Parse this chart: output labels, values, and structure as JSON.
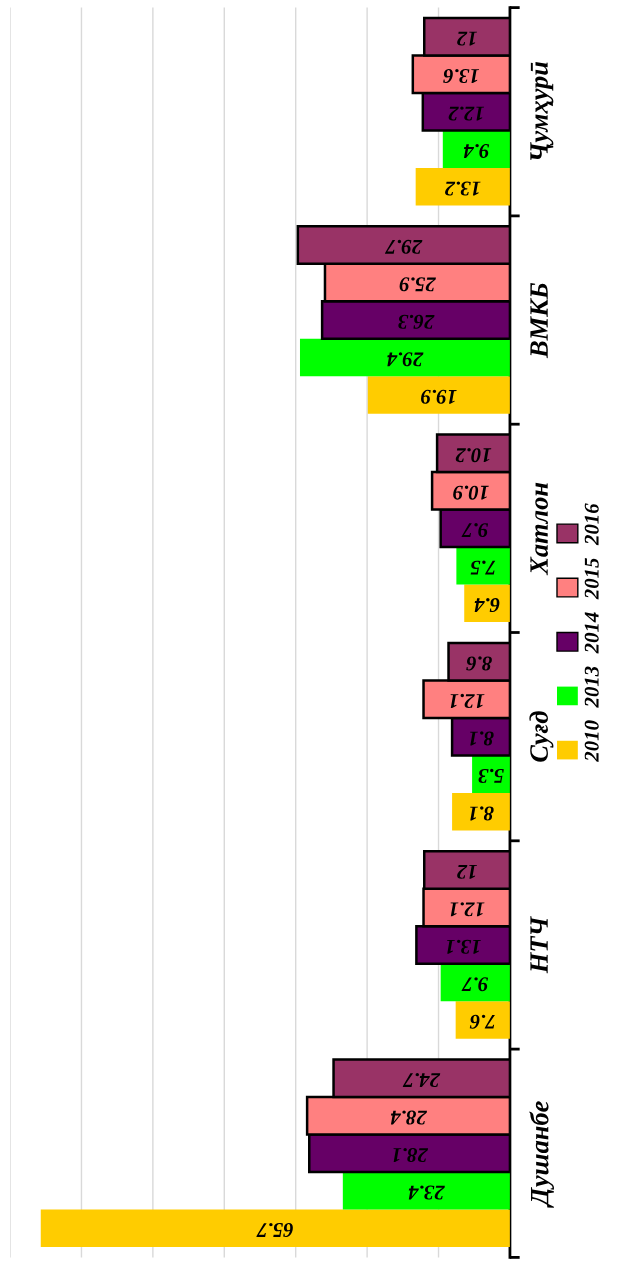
{
  "chart_data": {
    "type": "bar",
    "orientation": "horizontal",
    "categories": [
      "Ҷумҳурӣ",
      "ВМКБ",
      "Хатлон",
      "Суғд",
      "НТЧ",
      "Душанбе"
    ],
    "series": [
      {
        "name": "2010",
        "color": "#ffcc00",
        "values": [
          13.2,
          19.9,
          6.4,
          8.1,
          7.6,
          65.7
        ]
      },
      {
        "name": "2013",
        "color": "#00ff00",
        "values": [
          9.4,
          29.4,
          7.5,
          5.3,
          9.7,
          23.4
        ]
      },
      {
        "name": "2014",
        "color": "#660066",
        "values": [
          12.2,
          26.3,
          9.7,
          8.1,
          13.1,
          28.1
        ]
      },
      {
        "name": "2015",
        "color": "#ff8080",
        "values": [
          13.6,
          25.9,
          10.9,
          12.1,
          12.1,
          28.4
        ]
      },
      {
        "name": "2016",
        "color": "#993366",
        "values": [
          12,
          29.7,
          10.2,
          8.6,
          12,
          24.7
        ]
      }
    ],
    "xlim": [
      70,
      0
    ],
    "xticks": [
      {
        "value": 10,
        "label": null
      },
      {
        "value": 20,
        "label": null
      },
      {
        "value": 30,
        "label": null
      },
      {
        "value": 40,
        "label": null
      },
      {
        "value": 50,
        "label": null
      },
      {
        "value": 60,
        "label": null
      },
      {
        "value": 70,
        "label": null
      }
    ],
    "tick_labels": "y",
    "grid": "x",
    "data_labels": true,
    "legend": "right"
  }
}
